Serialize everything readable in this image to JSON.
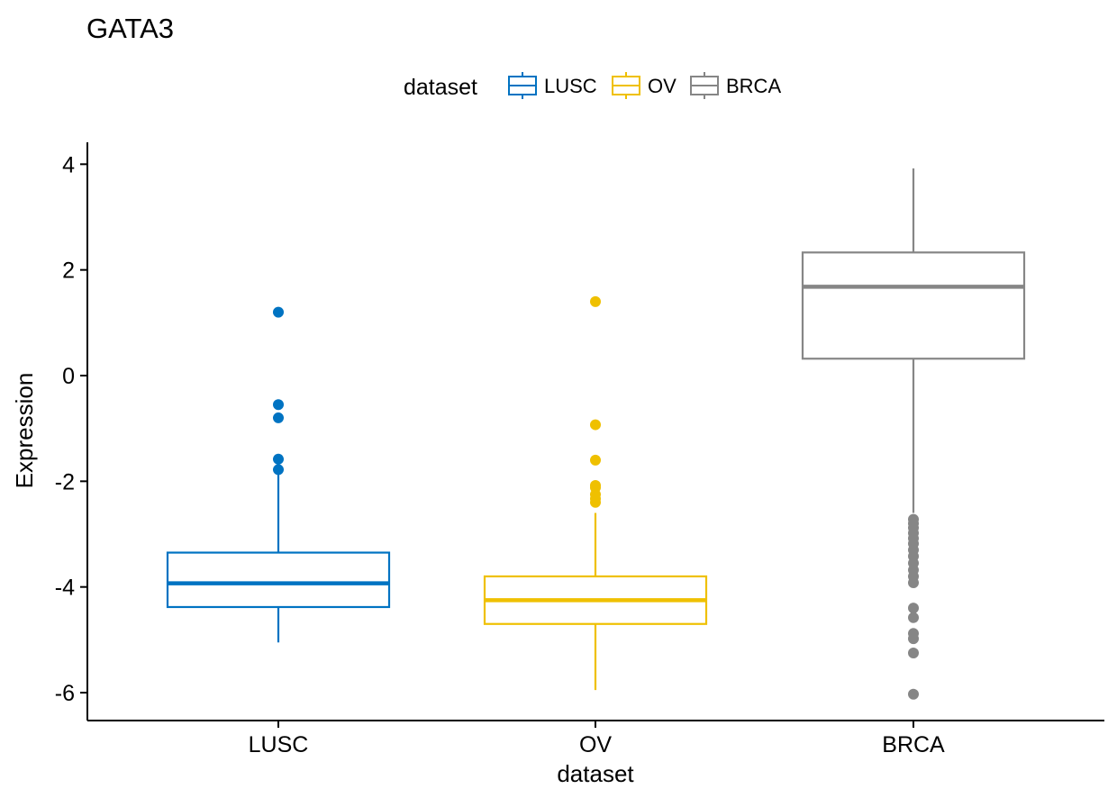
{
  "chart_data": {
    "type": "boxplot",
    "title": "GATA3",
    "xlabel": "dataset",
    "ylabel": "Expression",
    "ylim": [
      -6.5,
      4.3
    ],
    "yticks": [
      4,
      2,
      0,
      -2,
      -4,
      -6
    ],
    "ytick_labels": [
      "4",
      "2",
      "0",
      "-2",
      "-4",
      "-6"
    ],
    "grid": false,
    "legend": {
      "title": "dataset",
      "position": "top",
      "entries": [
        "LUSC",
        "OV",
        "BRCA"
      ]
    },
    "categories": [
      "LUSC",
      "OV",
      "BRCA"
    ],
    "series": [
      {
        "name": "LUSC",
        "color": "#0073C2",
        "whisker_low": -5.05,
        "q1": -4.38,
        "median": -3.93,
        "q3": -3.35,
        "whisker_high": -1.85,
        "outliers": [
          1.2,
          -0.55,
          -0.8,
          -1.58,
          -1.78
        ]
      },
      {
        "name": "OV",
        "color": "#EFC000",
        "whisker_low": -5.95,
        "q1": -4.7,
        "median": -4.25,
        "q3": -3.8,
        "whisker_high": -2.6,
        "outliers": [
          1.4,
          -0.93,
          -1.6,
          -2.08,
          -2.12,
          -2.25,
          -2.33,
          -2.4
        ]
      },
      {
        "name": "BRCA",
        "color": "#868686",
        "whisker_low": -2.6,
        "q1": 0.32,
        "median": 1.68,
        "q3": 2.33,
        "whisker_high": 3.92,
        "outliers": [
          -2.72,
          -2.8,
          -2.88,
          -2.98,
          -3.08,
          -3.18,
          -3.3,
          -3.42,
          -3.55,
          -3.68,
          -3.8,
          -3.92,
          -4.4,
          -4.58,
          -4.88,
          -4.98,
          -5.25,
          -6.03
        ]
      }
    ]
  }
}
